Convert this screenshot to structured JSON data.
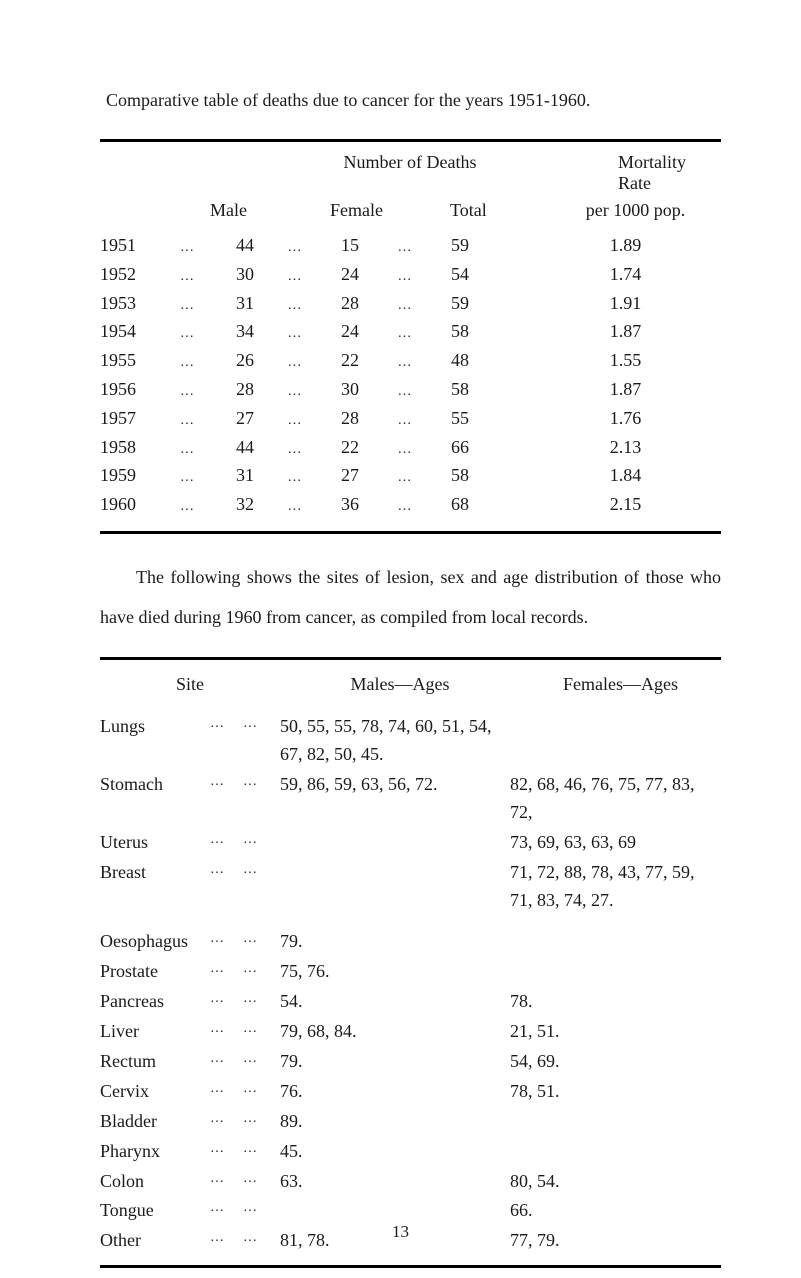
{
  "title": "Comparative table of deaths due to cancer for the years 1951-1960.",
  "table1": {
    "header_top_nod": "Number of Deaths",
    "header_top_rate": "Mortality Rate",
    "header_male": "Male",
    "header_female": "Female",
    "header_total": "Total",
    "header_rate": "per 1000 pop.",
    "rows": [
      {
        "year": "1951",
        "male": "44",
        "female": "15",
        "total": "59",
        "rate": "1.89"
      },
      {
        "year": "1952",
        "male": "30",
        "female": "24",
        "total": "54",
        "rate": "1.74"
      },
      {
        "year": "1953",
        "male": "31",
        "female": "28",
        "total": "59",
        "rate": "1.91"
      },
      {
        "year": "1954",
        "male": "34",
        "female": "24",
        "total": "58",
        "rate": "1.87"
      },
      {
        "year": "1955",
        "male": "26",
        "female": "22",
        "total": "48",
        "rate": "1.55"
      },
      {
        "year": "1956",
        "male": "28",
        "female": "30",
        "total": "58",
        "rate": "1.87"
      },
      {
        "year": "1957",
        "male": "27",
        "female": "28",
        "total": "55",
        "rate": "1.76"
      },
      {
        "year": "1958",
        "male": "44",
        "female": "22",
        "total": "66",
        "rate": "2.13"
      },
      {
        "year": "1959",
        "male": "31",
        "female": "27",
        "total": "58",
        "rate": "1.84"
      },
      {
        "year": "1960",
        "male": "32",
        "female": "36",
        "total": "68",
        "rate": "2.15"
      }
    ]
  },
  "paragraph": "The following shows the sites of lesion, sex and age distribution of those who have died during 1960 from cancer, as compiled from local records.",
  "table2": {
    "header_site": "Site",
    "header_males": "Males—Ages",
    "header_females": "Females—Ages",
    "rows": [
      {
        "site": "Lungs",
        "males": "50, 55, 55, 78, 74, 60, 51, 54, 67, 82, 50, 45.",
        "females": ""
      },
      {
        "site": "Stomach",
        "males": "59, 86, 59, 63, 56, 72.",
        "females": "82, 68, 46, 76, 75, 77, 83, 72,"
      },
      {
        "site": "Uterus",
        "males": "",
        "females": "73, 69, 63, 63, 69"
      },
      {
        "site": "Breast",
        "males": "",
        "females": "71, 72, 88, 78, 43, 77, 59, 71, 83, 74, 27."
      },
      {
        "site": "Oesophagus",
        "males": "79.",
        "females": ""
      },
      {
        "site": "Prostate",
        "males": "75, 76.",
        "females": ""
      },
      {
        "site": "Pancreas",
        "males": "54.",
        "females": "78."
      },
      {
        "site": "Liver",
        "males": "79, 68, 84.",
        "females": "21, 51."
      },
      {
        "site": "Rectum",
        "males": "79.",
        "females": "54, 69."
      },
      {
        "site": "Cervix",
        "males": "76.",
        "females": "78, 51."
      },
      {
        "site": "Bladder",
        "males": "89.",
        "females": ""
      },
      {
        "site": "Pharynx",
        "males": "45.",
        "females": ""
      },
      {
        "site": "Colon",
        "males": "63.",
        "females": "80, 54."
      },
      {
        "site": "Tongue",
        "males": "",
        "females": "66."
      },
      {
        "site": "Other",
        "males": "81, 78.",
        "females": "77, 79."
      }
    ]
  },
  "page_number": "13",
  "dots": "…",
  "dots_long": "…   …"
}
